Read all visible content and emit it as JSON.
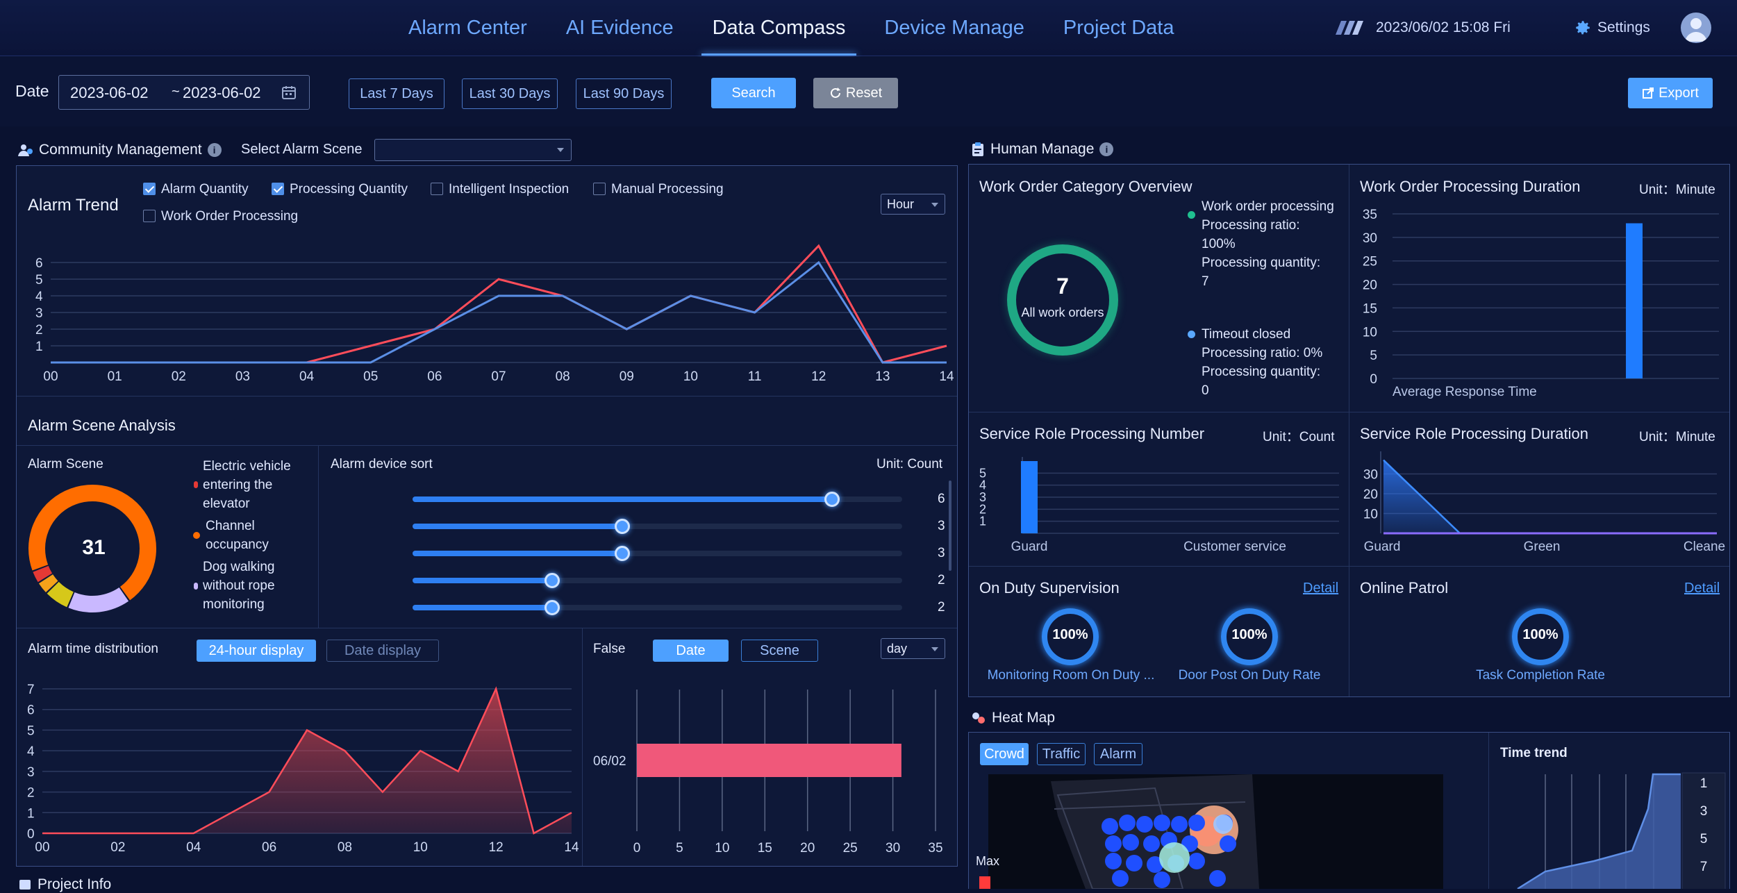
{
  "nav": {
    "items": [
      "Alarm Center",
      "AI Evidence",
      "Data Compass",
      "Device Manage",
      "Project Data"
    ],
    "active_index": 2,
    "datetime": "2023/06/02 15:08 Fri",
    "settings_label": "Settings"
  },
  "filters": {
    "date_label": "Date",
    "date_start": "2023-06-02",
    "date_sep": "~",
    "date_end": "2023-06-02",
    "quick_ranges": [
      "Last 7 Days",
      "Last 30 Days",
      "Last 90 Days"
    ],
    "search_label": "Search",
    "reset_label": "Reset",
    "export_label": "Export"
  },
  "community": {
    "title": "Community Management",
    "scene_label": "Select Alarm Scene",
    "scene_value": ""
  },
  "alarm_trend": {
    "title": "Alarm Trend",
    "options": [
      {
        "label": "Alarm Quantity",
        "checked": true
      },
      {
        "label": "Processing Quantity",
        "checked": true
      },
      {
        "label": "Intelligent Inspection",
        "checked": false
      },
      {
        "label": "Manual Processing",
        "checked": false
      },
      {
        "label": "Work Order Processing",
        "checked": false
      }
    ],
    "granularity": "Hour"
  },
  "scene_analysis": {
    "title": "Alarm Scene Analysis",
    "scene_title": "Alarm Scene",
    "total": "31",
    "legend": [
      {
        "label": "Electric vehicle entering the elevator",
        "color": "#e53935"
      },
      {
        "label": "Channel occupancy",
        "color": "#ff6d00"
      },
      {
        "label": "Dog walking without rope monitoring",
        "color": "#c9b8ff"
      }
    ],
    "device_sort_title": "Alarm device sort",
    "device_unit": "Unit: Count",
    "device_values": [
      6,
      3,
      3,
      2,
      2
    ],
    "device_max": 7
  },
  "time_dist": {
    "title": "Alarm time distribution",
    "tab_24h": "24-hour display",
    "tab_date": "Date display"
  },
  "false_panel": {
    "label": "False",
    "tab_date": "Date",
    "tab_scene": "Scene",
    "period": "day"
  },
  "human": {
    "title": "Human Manage",
    "wo_overview_title": "Work Order Category Overview",
    "wo_total": "7",
    "wo_total_label": "All work orders",
    "wo_legend": [
      {
        "name": "Work order processing",
        "ratio_label": "Processing ratio:",
        "ratio": "100%",
        "qty_label": "Processing quantity:",
        "qty": "7",
        "color": "#1fbf8f"
      },
      {
        "name": "Timeout closed",
        "ratio_label": "Processing ratio:",
        "ratio": "0%",
        "qty_label": "Processing quantity:",
        "qty": "0",
        "color": "#5aa8ff"
      }
    ],
    "wo_duration_title": "Work Order Processing Duration",
    "wo_duration_unit": "Unit：Minute",
    "srv_num_title": "Service Role Processing Number",
    "srv_num_unit": "Unit：Count",
    "srv_dur_title": "Service Role Processing Duration",
    "srv_dur_unit": "Unit：Minute",
    "on_duty_title": "On Duty Supervision",
    "detail_label": "Detail",
    "on_duty_items": [
      {
        "value": "100%",
        "label": "Monitoring Room On Duty ..."
      },
      {
        "value": "100%",
        "label": "Door Post On Duty Rate"
      }
    ],
    "patrol_title": "Online Patrol",
    "patrol_item": {
      "value": "100%",
      "label": "Task Completion Rate"
    }
  },
  "heatmap": {
    "title": "Heat Map",
    "tabs": [
      "Crowd",
      "Traffic",
      "Alarm"
    ],
    "active_tab": 0,
    "max_label": "Max",
    "time_trend_title": "Time trend",
    "time_trend_ticks": [
      "1",
      "3",
      "5",
      "7"
    ]
  },
  "project_info": {
    "title": "Project Info"
  },
  "chart_data": [
    {
      "id": "alarm_trend",
      "type": "line",
      "x": [
        "00",
        "01",
        "02",
        "03",
        "04",
        "05",
        "06",
        "07",
        "08",
        "09",
        "10",
        "11",
        "12",
        "13",
        "14"
      ],
      "ylim": [
        0,
        7
      ],
      "yticks": [
        1,
        2,
        3,
        4,
        5,
        6
      ],
      "series": [
        {
          "name": "Alarm Quantity",
          "color": "#ff4d5a",
          "values": [
            0,
            0,
            0,
            0,
            0,
            1,
            2,
            5,
            4,
            2,
            4,
            3,
            7,
            0,
            1
          ]
        },
        {
          "name": "Processing Quantity",
          "color": "#5b8fe6",
          "values": [
            0,
            0,
            0,
            0,
            0,
            0,
            2,
            4,
            4,
            2,
            4,
            3,
            6,
            0,
            0
          ]
        }
      ]
    },
    {
      "id": "alarm_scene",
      "type": "pie",
      "values": [
        22,
        5,
        2,
        1,
        1
      ],
      "colors": [
        "#ff6d00",
        "#c9b8ff",
        "#d6c81a",
        "#f4a21a",
        "#e53935"
      ]
    },
    {
      "id": "alarm_time_distribution",
      "type": "area",
      "x": [
        "00",
        "01",
        "02",
        "03",
        "04",
        "05",
        "06",
        "07",
        "08",
        "09",
        "10",
        "11",
        "12",
        "13",
        "14"
      ],
      "xticks": [
        "00",
        "02",
        "04",
        "06",
        "08",
        "10",
        "12",
        "14"
      ],
      "ylim": [
        0,
        7
      ],
      "yticks": [
        0,
        1,
        2,
        3,
        4,
        5,
        6,
        7
      ],
      "values": [
        0,
        0,
        0,
        0,
        0,
        1,
        2,
        5,
        4,
        2,
        4,
        3,
        7,
        0,
        1
      ]
    },
    {
      "id": "false_by_date",
      "type": "bar",
      "orientation": "horizontal",
      "categories": [
        "06/02"
      ],
      "values": [
        31
      ],
      "xlim": [
        0,
        35
      ],
      "xticks": [
        0,
        5,
        10,
        15,
        20,
        25,
        30,
        35
      ],
      "color": "#f0587a"
    },
    {
      "id": "wo_duration",
      "type": "bar",
      "categories": [
        "Average Response Time"
      ],
      "values": [
        33
      ],
      "ylim": [
        0,
        35
      ],
      "yticks": [
        0,
        5,
        10,
        15,
        20,
        25,
        30,
        35
      ]
    },
    {
      "id": "srv_num",
      "type": "bar",
      "categories": [
        "Guard",
        "Customer service"
      ],
      "values": [
        6,
        0
      ],
      "ylim": [
        0,
        6
      ],
      "yticks": [
        1,
        2,
        3,
        4,
        5
      ]
    },
    {
      "id": "srv_dur",
      "type": "area",
      "categories": [
        "Guard",
        "Green",
        "Cleane"
      ],
      "values": [
        37,
        0,
        0
      ],
      "ylim": [
        0,
        40
      ],
      "yticks": [
        10,
        20,
        30
      ]
    }
  ]
}
